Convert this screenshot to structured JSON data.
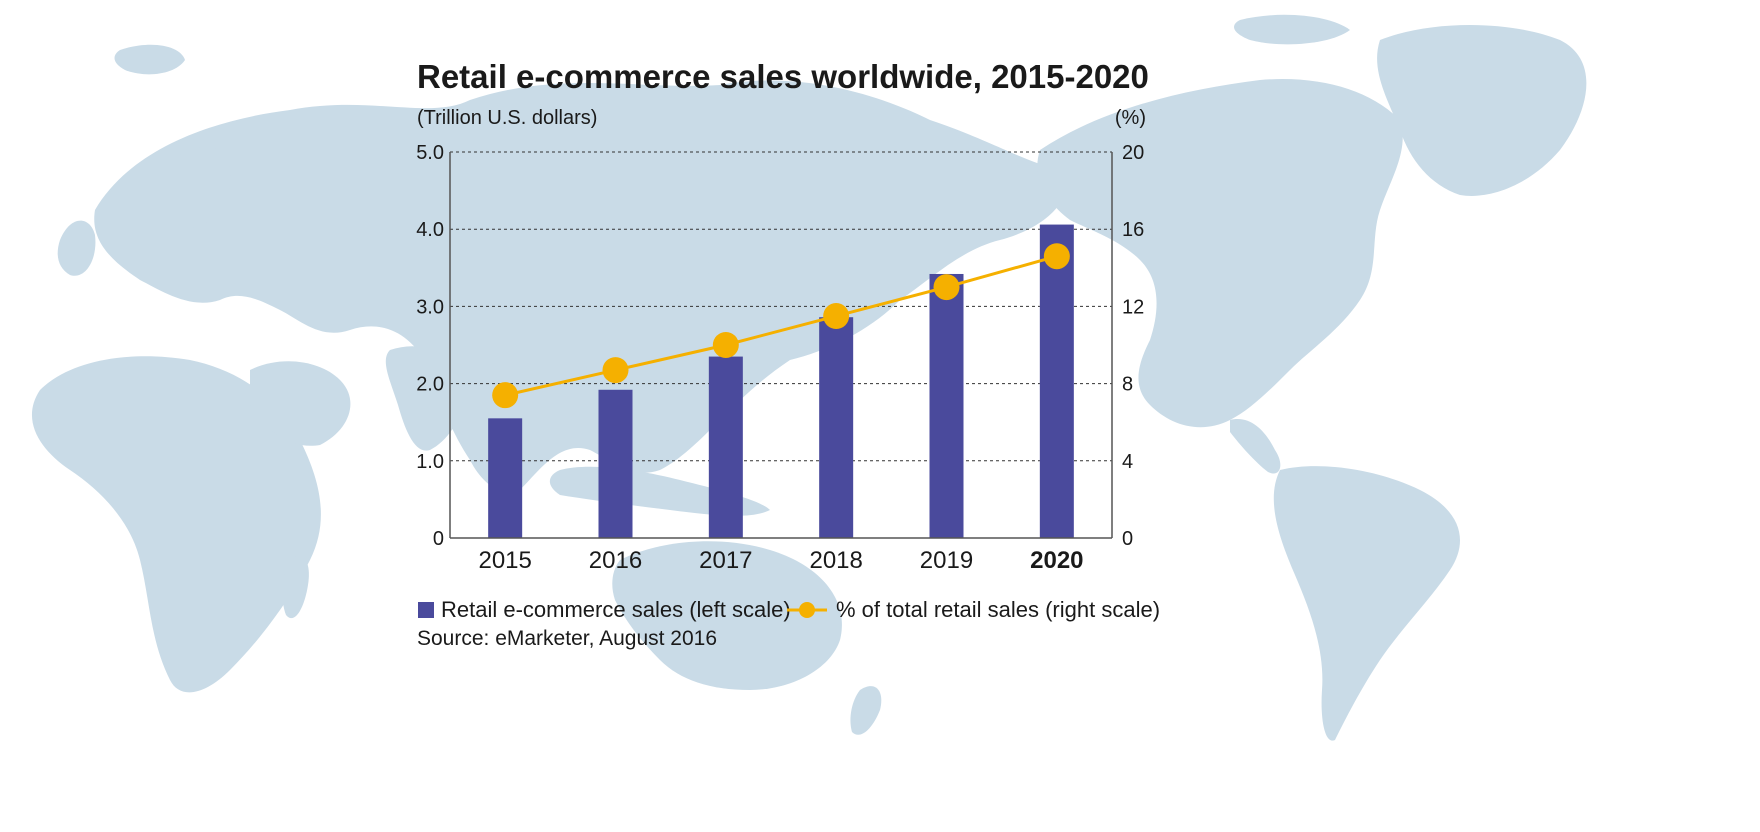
{
  "colors": {
    "background": "#ffffff",
    "map": "#c9dbe7",
    "bar": "#4a4a9c",
    "line": "#f5b000",
    "grid": "#333333",
    "text": "#1a1a1a"
  },
  "chart_data": {
    "type": "bar",
    "title": "Retail e-commerce sales worldwide, 2015-2020",
    "left_axis_unit": "(Trillion U.S. dollars)",
    "right_axis_unit": "(%)",
    "categories": [
      "2015",
      "2016",
      "2017",
      "2018",
      "2019",
      "2020"
    ],
    "highlight_category": "2020",
    "ylim_left": [
      0,
      5.0
    ],
    "ylim_right": [
      0,
      20
    ],
    "left_ticks": [
      "0",
      "1.0",
      "2.0",
      "3.0",
      "4.0",
      "5.0"
    ],
    "right_ticks": [
      "0",
      "4",
      "8",
      "12",
      "16",
      "20"
    ],
    "grid": true,
    "legend_position": "bottom-left",
    "series": [
      {
        "name": "Retail e-commerce sales (left scale)",
        "type": "bar",
        "axis": "left",
        "values": [
          1.55,
          1.92,
          2.35,
          2.86,
          3.42,
          4.06
        ]
      },
      {
        "name": "% of total retail sales (right scale)",
        "type": "line",
        "axis": "right",
        "values": [
          7.4,
          8.7,
          10.0,
          11.5,
          13.0,
          14.6
        ]
      }
    ],
    "source": "Source: eMarketer, August 2016"
  }
}
